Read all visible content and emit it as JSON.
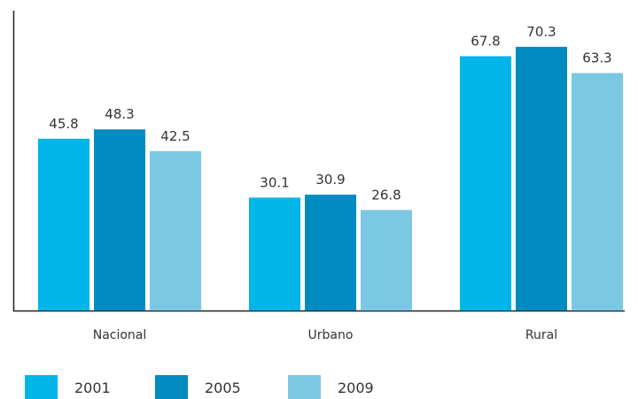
{
  "chart_data": {
    "type": "bar",
    "categories": [
      "Nacional",
      "Urbano",
      "Rural"
    ],
    "series": [
      {
        "name": "2001",
        "values": [
          45.8,
          30.1,
          67.8
        ]
      },
      {
        "name": "2005",
        "values": [
          48.3,
          30.9,
          70.3
        ]
      },
      {
        "name": "2009",
        "values": [
          42.5,
          26.8,
          63.3
        ]
      }
    ],
    "ylim": [
      0,
      80
    ],
    "grid": false,
    "legend_position": "bottom-left",
    "colors": [
      "#00b5e8",
      "#008cc0",
      "#7ac8e3"
    ]
  }
}
